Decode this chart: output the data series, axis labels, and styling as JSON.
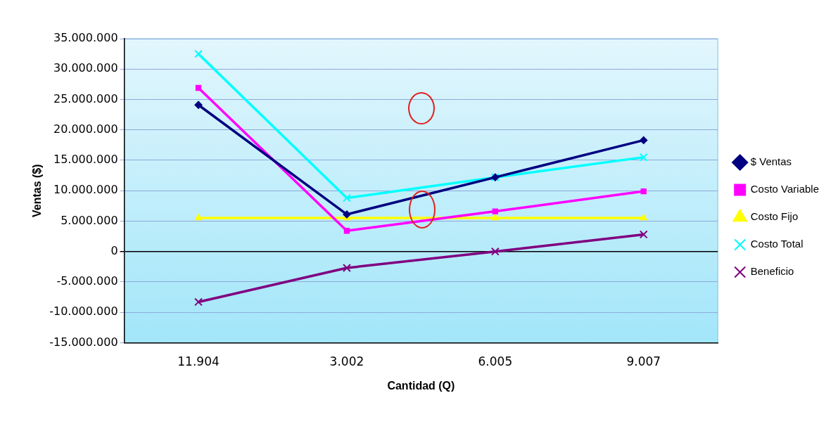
{
  "chart_data": {
    "type": "line",
    "xlabel": "Cantidad (Q)",
    "ylabel": "Ventas ($)",
    "categories": [
      "11.904",
      "3.002",
      "6.005",
      "9.007"
    ],
    "series": [
      {
        "name": "$ Ventas",
        "color": "#000080",
        "marker": "diamond",
        "values": [
          24100000,
          6100000,
          12200000,
          18300000
        ]
      },
      {
        "name": "Costo Variable",
        "color": "#ff00ff",
        "marker": "square",
        "values": [
          26900000,
          3400000,
          6600000,
          9900000
        ]
      },
      {
        "name": "Costo Fijo",
        "color": "#ffff00",
        "marker": "triangle",
        "values": [
          5500000,
          5500000,
          5500000,
          5500000
        ]
      },
      {
        "name": "Costo Total",
        "color": "#00ffff",
        "marker": "cross",
        "values": [
          32500000,
          8800000,
          12200000,
          15500000
        ]
      },
      {
        "name": "Beneficio",
        "color": "#800080",
        "marker": "cross",
        "values": [
          -8300000,
          -2700000,
          0,
          2800000
        ]
      }
    ],
    "ylim": [
      -15000000,
      35000000
    ],
    "yticks": [
      {
        "value": -15000000,
        "label": "-15.000.000"
      },
      {
        "value": -10000000,
        "label": "-10.000.000"
      },
      {
        "value": -5000000,
        "label": "-5.000.000"
      },
      0,
      {
        "value": 5000000,
        "label": "5.000.000"
      },
      {
        "value": 10000000,
        "label": "10.000.000"
      },
      {
        "value": 15000000,
        "label": "15.000.000"
      },
      {
        "value": 20000000,
        "label": "20.000.000"
      },
      {
        "value": 25000000,
        "label": "25.000.000"
      },
      {
        "value": 30000000,
        "label": "30.000.000"
      },
      {
        "value": 35000000,
        "label": "35.000.000"
      }
    ],
    "grid": "y",
    "legend": "right",
    "line_style": "solid"
  }
}
